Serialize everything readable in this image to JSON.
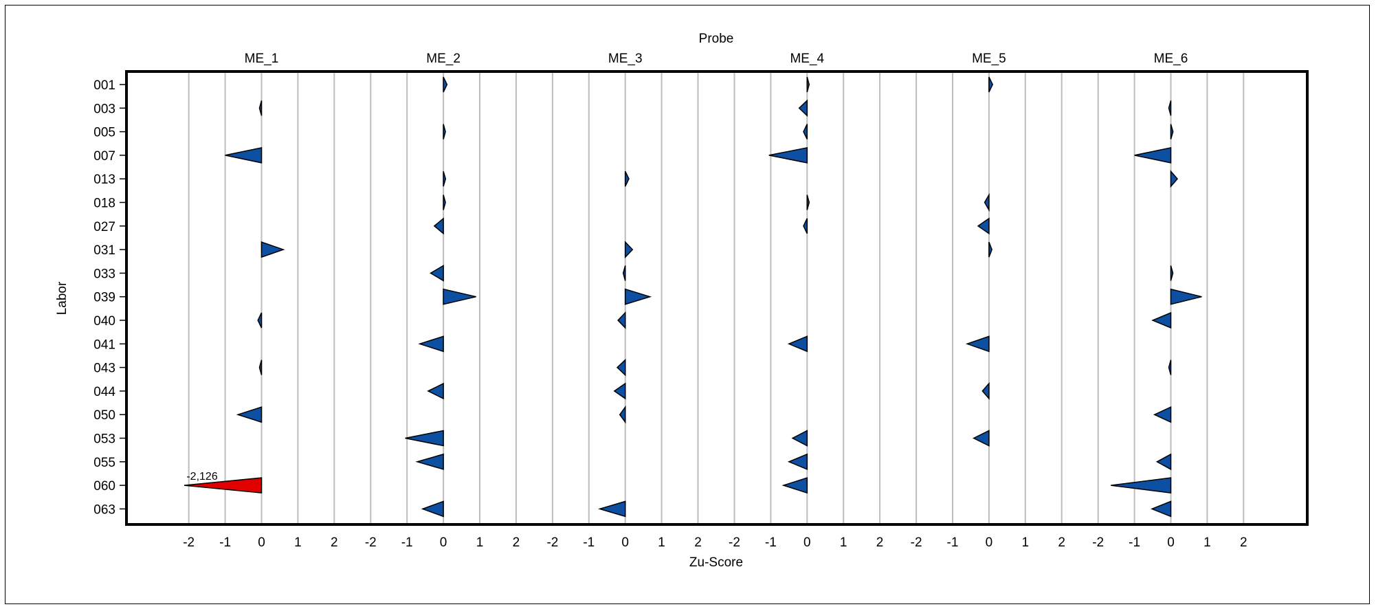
{
  "chart_data": {
    "type": "bar",
    "title": "Probe",
    "xlabel": "Zu-Score",
    "ylabel": "Labor",
    "categories": [
      "001",
      "003",
      "005",
      "007",
      "013",
      "018",
      "027",
      "031",
      "033",
      "039",
      "040",
      "041",
      "043",
      "044",
      "050",
      "053",
      "055",
      "060",
      "063"
    ],
    "panel_ticks": [
      -2,
      -1,
      0,
      1,
      2
    ],
    "xlim": [
      -2.5,
      2.5
    ],
    "grid": true,
    "colors": {
      "normal": "#0d4fa0",
      "flagged": "#e00000",
      "grid": "#bdbdbd"
    },
    "series": [
      {
        "name": "ME_1",
        "values": [
          null,
          -0.05,
          null,
          -1.0,
          null,
          null,
          null,
          0.6,
          null,
          null,
          -0.1,
          null,
          -0.05,
          null,
          -0.65,
          null,
          null,
          -2.126,
          null
        ]
      },
      {
        "name": "ME_2",
        "values": [
          0.1,
          null,
          0.03,
          null,
          0.06,
          0.02,
          -0.25,
          null,
          -0.35,
          0.9,
          null,
          -0.65,
          null,
          -0.42,
          null,
          -1.05,
          -0.72,
          null,
          -0.57
        ]
      },
      {
        "name": "ME_3",
        "values": [
          null,
          null,
          null,
          null,
          0.1,
          null,
          null,
          0.2,
          -0.03,
          0.68,
          -0.2,
          null,
          -0.22,
          -0.3,
          -0.15,
          null,
          null,
          null,
          -0.7
        ]
      },
      {
        "name": "ME_4",
        "values": [
          0.04,
          -0.22,
          -0.1,
          -1.05,
          null,
          0.04,
          -0.1,
          null,
          null,
          null,
          null,
          -0.5,
          null,
          null,
          null,
          -0.4,
          -0.5,
          -0.65,
          null
        ]
      },
      {
        "name": "ME_5",
        "values": [
          0.1,
          null,
          null,
          null,
          null,
          -0.12,
          -0.3,
          0.08,
          null,
          null,
          null,
          -0.6,
          null,
          -0.18,
          null,
          -0.42,
          null,
          null,
          null
        ]
      },
      {
        "name": "ME_6",
        "values": [
          null,
          -0.05,
          0.06,
          -1.0,
          0.18,
          null,
          null,
          null,
          0.02,
          0.85,
          -0.5,
          null,
          -0.04,
          null,
          -0.45,
          null,
          -0.38,
          -1.65,
          -0.52
        ]
      }
    ],
    "annotations": [
      {
        "series": "ME_1",
        "category": "060",
        "label": "-2,126",
        "color": "#e00000"
      }
    ]
  }
}
